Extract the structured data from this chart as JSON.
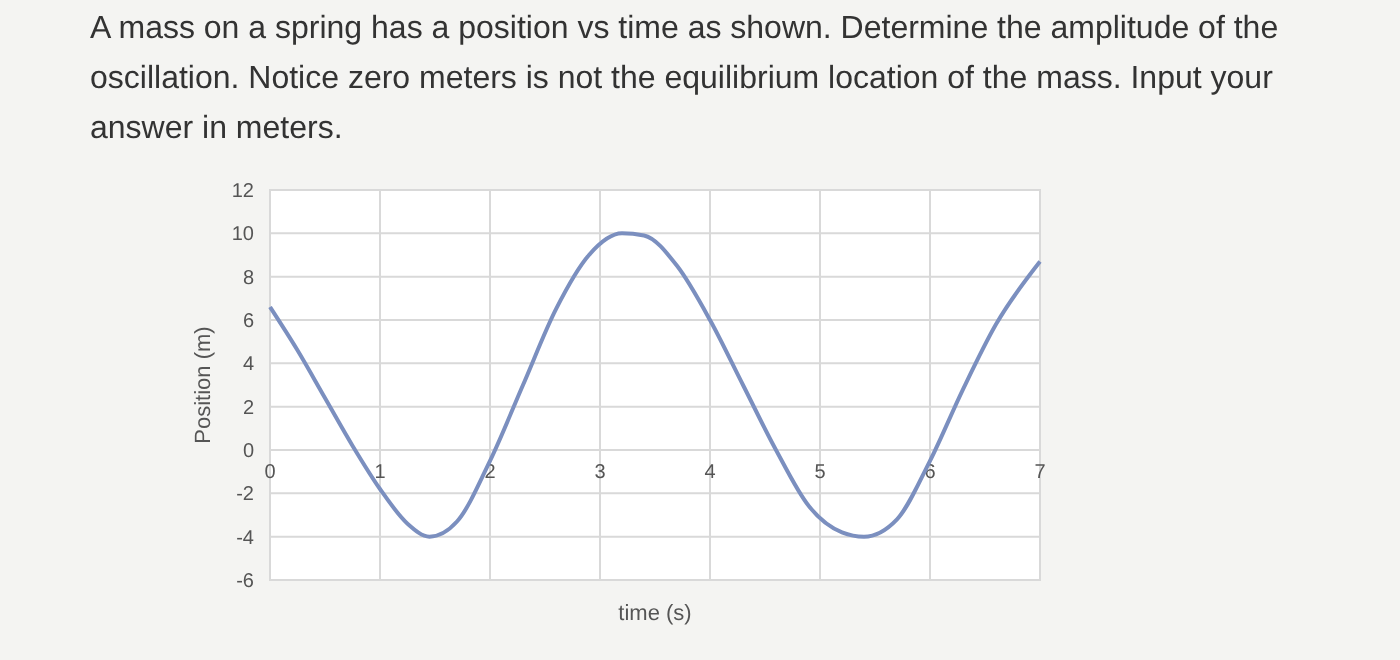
{
  "chart_data": {
    "type": "line",
    "title": "A mass on a spring has a position vs time as shown. Determine the amplitude of the oscillation. Notice zero meters is not the equilibrium location of the mass.  Input your answer in meters.",
    "xlabel": "time (s)",
    "ylabel": "Position (m)",
    "x": [
      0,
      0.25,
      0.5,
      0.75,
      1,
      1.25,
      1.45,
      1.7,
      2,
      2.3,
      2.6,
      2.9,
      3.2,
      3.4,
      3.7,
      4,
      4.3,
      4.6,
      4.9,
      5.2,
      5.4,
      5.7,
      6,
      6.3,
      6.6,
      7
    ],
    "series": [
      {
        "color": "#7b8fbf",
        "values": [
          6.6,
          4.6,
          2.4,
          0.2,
          -1.8,
          -3.4,
          -4,
          -3.3,
          -0.5,
          3,
          6.5,
          9,
          10,
          9.9,
          8.5,
          6,
          3,
          0,
          -2.6,
          -3.8,
          -4,
          -3.2,
          -0.5,
          2.8,
          5.8,
          8.7
        ]
      }
    ],
    "xlim": [
      0,
      7
    ],
    "xticks": [
      0,
      1,
      2,
      3,
      4,
      5,
      6,
      7
    ],
    "ylim": [
      -6,
      12
    ],
    "yticks": [
      -6,
      -4,
      -2,
      0,
      2,
      4,
      6,
      8,
      10,
      12
    ],
    "grid": true,
    "marker": "none",
    "line_style": "solid"
  }
}
